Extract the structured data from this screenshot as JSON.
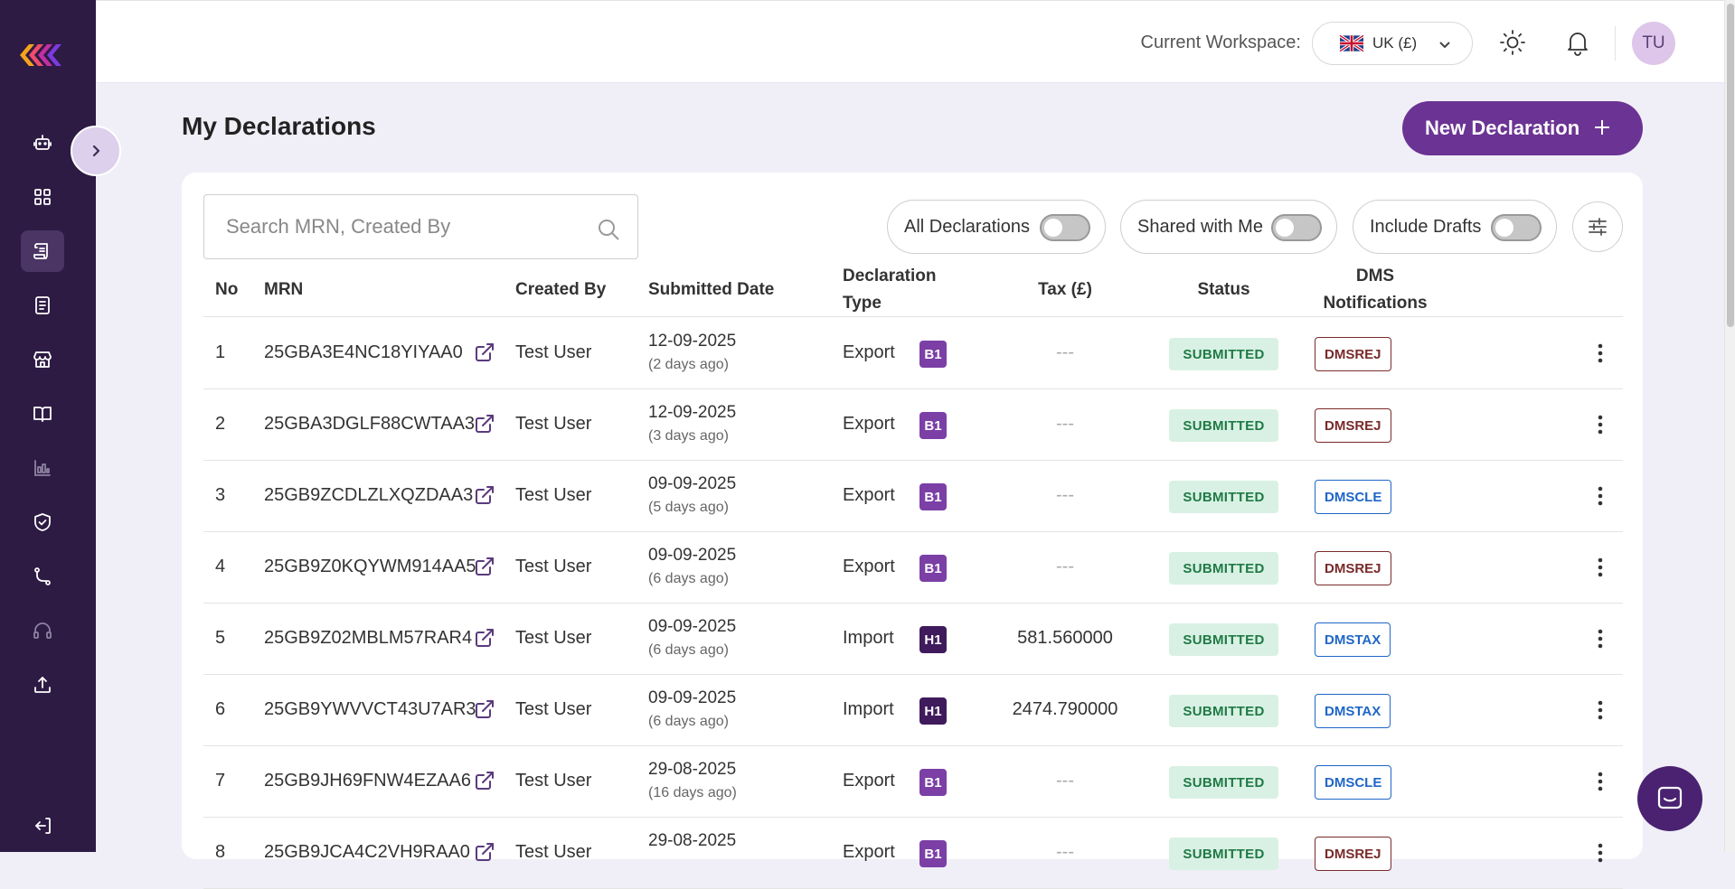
{
  "header": {
    "workspace_label": "Current Workspace:",
    "workspace_value": "UK (£)",
    "avatar_initials": "TU"
  },
  "page": {
    "title": "My Declarations",
    "new_button_label": "New Declaration"
  },
  "search": {
    "placeholder": "Search MRN, Created By"
  },
  "toggles": [
    {
      "label": "All Declarations",
      "on": false
    },
    {
      "label": "Shared with Me",
      "on": false
    },
    {
      "label": "Include Drafts",
      "on": false
    }
  ],
  "table": {
    "headers": {
      "no": "No",
      "mrn": "MRN",
      "created_by": "Created By",
      "submitted_date": "Submitted Date",
      "declaration_type_1": "Declaration",
      "declaration_type_2": "Type",
      "tax": "Tax (£)",
      "status": "Status",
      "dms_1": "DMS",
      "dms_2": "Notifications"
    },
    "rows": [
      {
        "no": "1",
        "mrn": "25GBA3E4NC18YIYAA0",
        "created_by": "Test User",
        "date": "12-09-2025",
        "ago": "(2 days ago)",
        "type": "Export",
        "badge": "B1",
        "tax": "---",
        "status": "SUBMITTED",
        "dms": "DMSREJ"
      },
      {
        "no": "2",
        "mrn": "25GBA3DGLF88CWTAA3",
        "created_by": "Test User",
        "date": "12-09-2025",
        "ago": "(3 days ago)",
        "type": "Export",
        "badge": "B1",
        "tax": "---",
        "status": "SUBMITTED",
        "dms": "DMSREJ"
      },
      {
        "no": "3",
        "mrn": "25GB9ZCDLZLXQZDAA3",
        "created_by": "Test User",
        "date": "09-09-2025",
        "ago": "(5 days ago)",
        "type": "Export",
        "badge": "B1",
        "tax": "---",
        "status": "SUBMITTED",
        "dms": "DMSCLE"
      },
      {
        "no": "4",
        "mrn": "25GB9Z0KQYWM914AA5",
        "created_by": "Test User",
        "date": "09-09-2025",
        "ago": "(6 days ago)",
        "type": "Export",
        "badge": "B1",
        "tax": "---",
        "status": "SUBMITTED",
        "dms": "DMSREJ"
      },
      {
        "no": "5",
        "mrn": "25GB9Z02MBLM57RAR4",
        "created_by": "Test User",
        "date": "09-09-2025",
        "ago": "(6 days ago)",
        "type": "Import",
        "badge": "H1",
        "tax": "581.560000",
        "status": "SUBMITTED",
        "dms": "DMSTAX"
      },
      {
        "no": "6",
        "mrn": "25GB9YWVVCT43U7AR3",
        "created_by": "Test User",
        "date": "09-09-2025",
        "ago": "(6 days ago)",
        "type": "Import",
        "badge": "H1",
        "tax": "2474.790000",
        "status": "SUBMITTED",
        "dms": "DMSTAX"
      },
      {
        "no": "7",
        "mrn": "25GB9JH69FNW4EZAA6",
        "created_by": "Test User",
        "date": "29-08-2025",
        "ago": "(16 days ago)",
        "type": "Export",
        "badge": "B1",
        "tax": "---",
        "status": "SUBMITTED",
        "dms": "DMSCLE"
      },
      {
        "no": "8",
        "mrn": "25GB9JCA4C2VH9RAA0",
        "created_by": "Test User",
        "date": "29-08-2025",
        "ago": "",
        "type": "Export",
        "badge": "B1",
        "tax": "---",
        "status": "SUBMITTED",
        "dms": "DMSREJ"
      }
    ]
  },
  "colors": {
    "badge_B1": "#7b3fa6",
    "badge_H1": "#3f1a5c",
    "dms_DMSREJ": "#7a2a2a",
    "dms_DMSCLE": "#1f66c8",
    "dms_DMSTAX": "#1f66c8",
    "tax_empty": "#aaaaaa"
  },
  "icons": {
    "sidebar": [
      "robot-icon",
      "dashboard-grid-icon",
      "declarations-scroll-icon",
      "document-icon",
      "store-icon",
      "book-icon",
      "chart-icon",
      "shield-check-icon",
      "route-icon",
      "headset-icon",
      "upload-icon",
      "logout-icon"
    ]
  }
}
